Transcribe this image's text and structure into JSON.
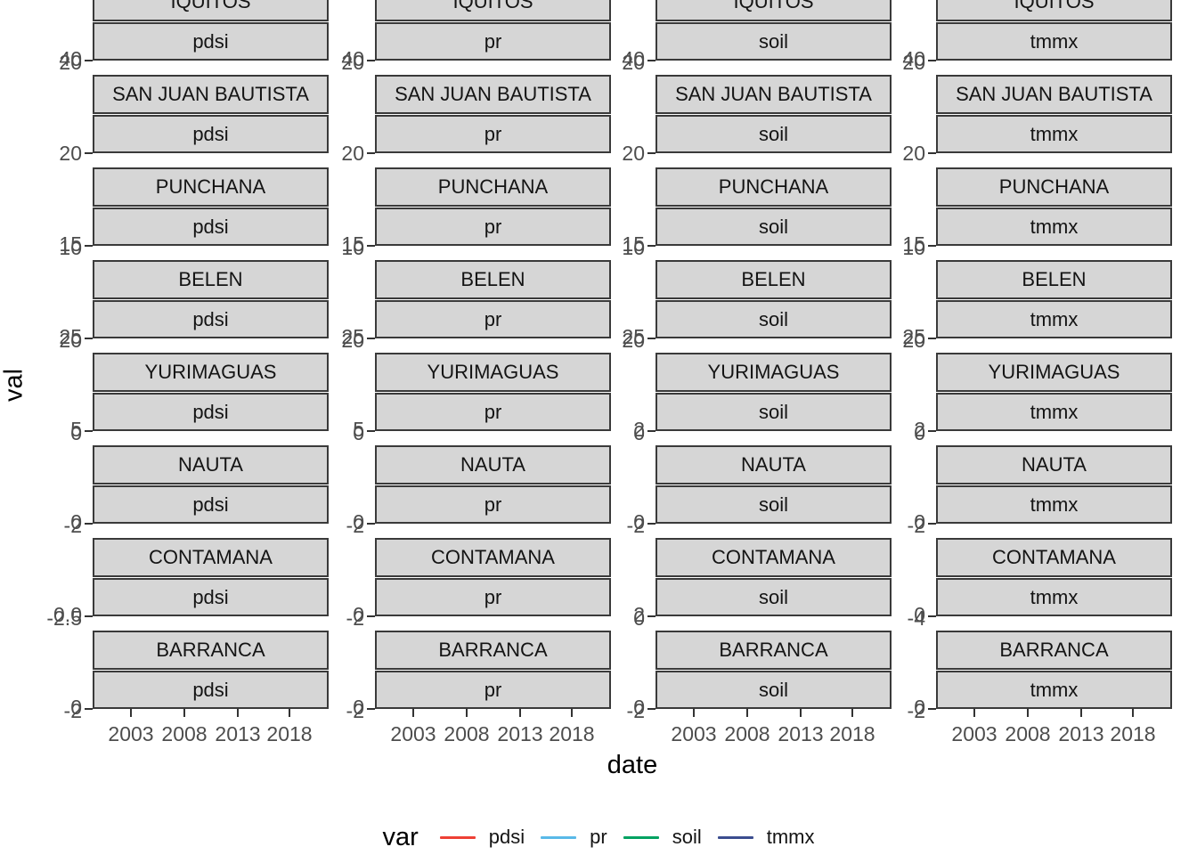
{
  "y_axis": {
    "title": "val"
  },
  "x_axis": {
    "title": "date",
    "tick_labels": [
      "2003",
      "2008",
      "2013",
      "2018"
    ]
  },
  "legend": {
    "title": "var",
    "items": [
      {
        "label": "pdsi",
        "color": "#ee4035"
      },
      {
        "label": "pr",
        "color": "#59b9e8"
      },
      {
        "label": "soil",
        "color": "#00a261"
      },
      {
        "label": "tmmx",
        "color": "#3c4d8f"
      }
    ]
  },
  "facets": {
    "row_labels": [
      "IQUITOS",
      "SAN JUAN BAUTISTA",
      "PUNCHANA",
      "BELEN",
      "YURIMAGUAS",
      "NAUTA",
      "CONTAMANA",
      "BARRANCA"
    ],
    "col_labels": [
      "pdsi",
      "pr",
      "soil",
      "tmmx"
    ],
    "y_tick_labels": [
      [
        [
          "40",
          "20"
        ],
        [
          "20"
        ],
        [
          "15",
          "10"
        ],
        [
          "25",
          "20"
        ],
        [
          "5",
          "0"
        ],
        [
          "0",
          "-2"
        ],
        [
          "0.0",
          "-2.5"
        ],
        [
          "0",
          "-2"
        ]
      ],
      [
        [
          "40",
          "20"
        ],
        [
          "20"
        ],
        [
          "15",
          "10"
        ],
        [
          "25",
          "20"
        ],
        [
          "5",
          "0"
        ],
        [
          "0",
          "-2"
        ],
        [
          "0",
          "-2"
        ],
        [
          "0",
          "-2"
        ]
      ],
      [
        [
          "40",
          "20"
        ],
        [
          "20"
        ],
        [
          "15",
          "10"
        ],
        [
          "25",
          "20"
        ],
        [
          "2",
          "0"
        ],
        [
          "0",
          "-2"
        ],
        [
          "2",
          "0"
        ],
        [
          "0",
          "-2"
        ]
      ],
      [
        [
          "40",
          "20"
        ],
        [
          "20"
        ],
        [
          "15",
          "10"
        ],
        [
          "25",
          "20"
        ],
        [
          "2",
          "0"
        ],
        [
          "0",
          "-2"
        ],
        [
          "0",
          "-4"
        ],
        [
          "0",
          "-2"
        ]
      ]
    ]
  },
  "chart_data": {
    "type": "line",
    "title": "",
    "xlabel": "date",
    "ylabel": "val",
    "x_tick_labels": [
      "2003",
      "2008",
      "2013",
      "2018"
    ],
    "facet_rows": [
      "IQUITOS",
      "SAN JUAN BAUTISTA",
      "PUNCHANA",
      "BELEN",
      "YURIMAGUAS",
      "NAUTA",
      "CONTAMANA",
      "BARRANCA"
    ],
    "facet_cols": [
      "pdsi",
      "pr",
      "soil",
      "tmmx"
    ],
    "scales": "free_y",
    "legend_position": "bottom",
    "series": [
      {
        "name": "pdsi",
        "color": "#ee4035"
      },
      {
        "name": "pr",
        "color": "#59b9e8"
      },
      {
        "name": "soil",
        "color": "#00a261"
      },
      {
        "name": "tmmx",
        "color": "#3c4d8f"
      }
    ],
    "panel_y_tick_labels": {
      "pdsi": [
        [
          "40",
          "20"
        ],
        [
          "20"
        ],
        [
          "15",
          "10"
        ],
        [
          "25",
          "20"
        ],
        [
          "5",
          "0"
        ],
        [
          "0",
          "-2"
        ],
        [
          "0.0",
          "-2.5"
        ],
        [
          "0",
          "-2"
        ]
      ],
      "pr": [
        [
          "40",
          "20"
        ],
        [
          "20"
        ],
        [
          "15",
          "10"
        ],
        [
          "25",
          "20"
        ],
        [
          "5",
          "0"
        ],
        [
          "0",
          "-2"
        ],
        [
          "0",
          "-2"
        ],
        [
          "0",
          "-2"
        ]
      ],
      "soil": [
        [
          "40",
          "20"
        ],
        [
          "20"
        ],
        [
          "15",
          "10"
        ],
        [
          "25",
          "20"
        ],
        [
          "2",
          "0"
        ],
        [
          "0",
          "-2"
        ],
        [
          "2",
          "0"
        ],
        [
          "0",
          "-2"
        ]
      ],
      "tmmx": [
        [
          "40",
          "20"
        ],
        [
          "20"
        ],
        [
          "15",
          "10"
        ],
        [
          "25",
          "20"
        ],
        [
          "2",
          "0"
        ],
        [
          "0",
          "-2"
        ],
        [
          "0",
          "-4"
        ],
        [
          "0",
          "-2"
        ]
      ]
    }
  }
}
